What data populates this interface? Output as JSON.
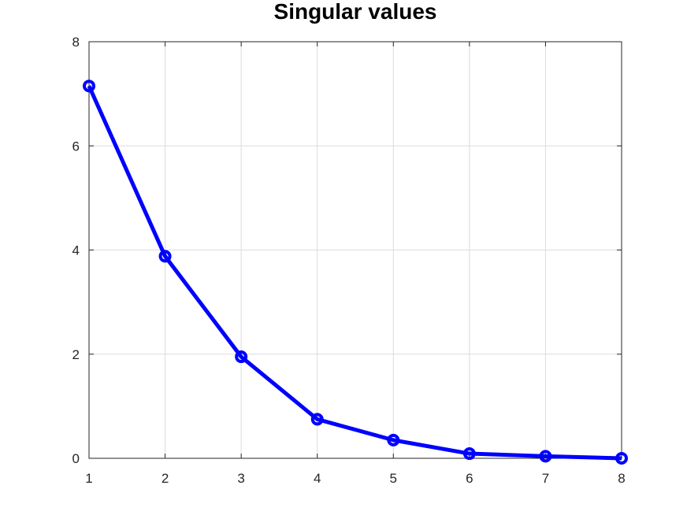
{
  "chart_data": {
    "type": "line",
    "title": "Singular values",
    "xlabel": "",
    "ylabel": "",
    "xlim": [
      1,
      8
    ],
    "ylim": [
      0,
      8
    ],
    "xticks": [
      1,
      2,
      3,
      4,
      5,
      6,
      7,
      8
    ],
    "yticks": [
      0,
      2,
      4,
      6,
      8
    ],
    "grid": true,
    "series": [
      {
        "x": [
          1,
          2,
          3,
          4,
          5,
          6,
          7,
          8
        ],
        "values": [
          7.15,
          3.88,
          1.95,
          0.75,
          0.35,
          0.09,
          0.04,
          0.0
        ],
        "color": "#0000ff",
        "marker": "circle"
      }
    ]
  }
}
